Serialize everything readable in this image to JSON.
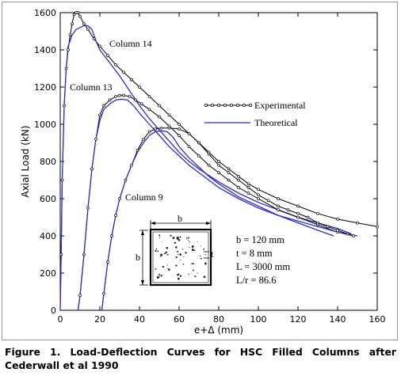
{
  "caption": "Figure 1. Load-Deflection Curves for HSC Filled Columns after Cederwall et al 1990",
  "section": {
    "dim_b_top": "b",
    "dim_b_left": "b",
    "dim_t": "t"
  },
  "properties": [
    "b = 120 mm",
    "t = 8 mm",
    "L = 3000 mm",
    "L/r = 86.6"
  ],
  "colors": {
    "experimental": "#000000",
    "theoretical": "#2b2bd6"
  },
  "chart_data": {
    "type": "line",
    "xlabel": "e+Δ (mm)",
    "ylabel": "Axial Load (kN)",
    "xlim": [
      0,
      160
    ],
    "ylim": [
      0,
      1600
    ],
    "xticks": [
      0,
      20,
      40,
      60,
      80,
      100,
      120,
      140,
      160
    ],
    "yticks": [
      0,
      200,
      400,
      600,
      800,
      1000,
      1200,
      1400,
      1600
    ],
    "legend": {
      "position": "right-middle",
      "entries": [
        "Experimental",
        "Theoretical"
      ]
    },
    "annotations": [
      "Column 14",
      "Column 13",
      "Column 9"
    ],
    "series": [
      {
        "name": "Experimental",
        "column": "Column 14",
        "style": "line-with-markers",
        "points": [
          [
            0,
            0
          ],
          [
            0.5,
            300
          ],
          [
            1,
            700
          ],
          [
            2,
            1100
          ],
          [
            3,
            1300
          ],
          [
            4,
            1400
          ],
          [
            5,
            1480
          ],
          [
            6,
            1540
          ],
          [
            7,
            1590
          ],
          [
            8,
            1600
          ],
          [
            9,
            1600
          ],
          [
            10,
            1580
          ],
          [
            12,
            1540
          ],
          [
            14,
            1510
          ],
          [
            17,
            1460
          ],
          [
            20,
            1420
          ],
          [
            24,
            1370
          ],
          [
            28,
            1320
          ],
          [
            32,
            1280
          ],
          [
            36,
            1240
          ],
          [
            40,
            1200
          ],
          [
            45,
            1150
          ],
          [
            50,
            1100
          ],
          [
            55,
            1050
          ],
          [
            60,
            1000
          ],
          [
            65,
            950
          ],
          [
            70,
            900
          ],
          [
            75,
            850
          ],
          [
            80,
            800
          ],
          [
            85,
            760
          ],
          [
            90,
            720
          ],
          [
            95,
            680
          ],
          [
            100,
            650
          ],
          [
            110,
            600
          ],
          [
            120,
            560
          ],
          [
            130,
            520
          ],
          [
            140,
            490
          ],
          [
            150,
            470
          ],
          [
            160,
            450
          ]
        ]
      },
      {
        "name": "Theoretical",
        "column": "Column 14",
        "style": "line",
        "points": [
          [
            0,
            0
          ],
          [
            1,
            700
          ],
          [
            2,
            1100
          ],
          [
            3,
            1300
          ],
          [
            4,
            1420
          ],
          [
            6,
            1480
          ],
          [
            8,
            1510
          ],
          [
            10,
            1520
          ],
          [
            12,
            1530
          ],
          [
            14,
            1530
          ],
          [
            16,
            1510
          ],
          [
            18,
            1450
          ],
          [
            20,
            1400
          ],
          [
            25,
            1330
          ],
          [
            30,
            1260
          ],
          [
            35,
            1180
          ],
          [
            40,
            1100
          ],
          [
            45,
            1030
          ],
          [
            50,
            970
          ],
          [
            55,
            910
          ],
          [
            60,
            850
          ],
          [
            65,
            800
          ],
          [
            70,
            760
          ],
          [
            80,
            690
          ],
          [
            90,
            630
          ],
          [
            100,
            580
          ],
          [
            110,
            540
          ],
          [
            120,
            500
          ],
          [
            130,
            470
          ],
          [
            140,
            440
          ],
          [
            147,
            410
          ]
        ]
      },
      {
        "name": "Experimental",
        "column": "Column 13",
        "style": "line-with-markers",
        "points": [
          [
            9,
            0
          ],
          [
            10,
            80
          ],
          [
            12,
            300
          ],
          [
            14,
            550
          ],
          [
            16,
            760
          ],
          [
            18,
            920
          ],
          [
            20,
            1050
          ],
          [
            22,
            1100
          ],
          [
            25,
            1130
          ],
          [
            28,
            1150
          ],
          [
            30,
            1155
          ],
          [
            32,
            1155
          ],
          [
            35,
            1150
          ],
          [
            38,
            1130
          ],
          [
            41,
            1110
          ],
          [
            45,
            1080
          ],
          [
            50,
            1040
          ],
          [
            55,
            990
          ],
          [
            60,
            940
          ],
          [
            65,
            880
          ],
          [
            70,
            830
          ],
          [
            75,
            780
          ],
          [
            80,
            740
          ],
          [
            85,
            700
          ],
          [
            90,
            660
          ],
          [
            95,
            630
          ],
          [
            100,
            600
          ],
          [
            110,
            540
          ],
          [
            120,
            500
          ],
          [
            130,
            460
          ],
          [
            140,
            420
          ],
          [
            148,
            400
          ]
        ]
      },
      {
        "name": "Theoretical",
        "column": "Column 13",
        "style": "line",
        "points": [
          [
            9,
            0
          ],
          [
            10,
            80
          ],
          [
            12,
            300
          ],
          [
            14,
            550
          ],
          [
            16,
            760
          ],
          [
            18,
            920
          ],
          [
            20,
            1020
          ],
          [
            22,
            1080
          ],
          [
            25,
            1110
          ],
          [
            28,
            1130
          ],
          [
            31,
            1135
          ],
          [
            34,
            1130
          ],
          [
            37,
            1100
          ],
          [
            40,
            1060
          ],
          [
            45,
            1000
          ],
          [
            50,
            940
          ],
          [
            55,
            880
          ],
          [
            60,
            830
          ],
          [
            65,
            780
          ],
          [
            70,
            740
          ],
          [
            75,
            700
          ],
          [
            80,
            660
          ],
          [
            90,
            600
          ],
          [
            100,
            550
          ],
          [
            110,
            510
          ],
          [
            120,
            480
          ],
          [
            130,
            450
          ],
          [
            140,
            420
          ],
          [
            150,
            400
          ]
        ]
      },
      {
        "name": "Experimental",
        "column": "Column 9",
        "style": "line-with-markers",
        "points": [
          [
            21,
            0
          ],
          [
            22,
            90
          ],
          [
            24,
            260
          ],
          [
            26,
            400
          ],
          [
            28,
            510
          ],
          [
            30,
            600
          ],
          [
            33,
            700
          ],
          [
            36,
            780
          ],
          [
            39,
            860
          ],
          [
            42,
            920
          ],
          [
            45,
            960
          ],
          [
            48,
            975
          ],
          [
            51,
            980
          ],
          [
            55,
            980
          ],
          [
            60,
            975
          ],
          [
            65,
            950
          ],
          [
            70,
            900
          ],
          [
            75,
            840
          ],
          [
            80,
            780
          ],
          [
            85,
            740
          ],
          [
            90,
            700
          ],
          [
            95,
            660
          ],
          [
            100,
            620
          ],
          [
            105,
            590
          ],
          [
            110,
            560
          ],
          [
            115,
            540
          ],
          [
            120,
            520
          ],
          [
            125,
            500
          ],
          [
            130,
            470
          ],
          [
            135,
            450
          ],
          [
            140,
            430
          ],
          [
            145,
            410
          ]
        ]
      },
      {
        "name": "Theoretical",
        "column": "Column 9",
        "style": "line",
        "points": [
          [
            21,
            0
          ],
          [
            22,
            90
          ],
          [
            24,
            260
          ],
          [
            26,
            400
          ],
          [
            28,
            510
          ],
          [
            30,
            600
          ],
          [
            33,
            700
          ],
          [
            36,
            780
          ],
          [
            39,
            850
          ],
          [
            42,
            900
          ],
          [
            45,
            940
          ],
          [
            48,
            960
          ],
          [
            51,
            965
          ],
          [
            54,
            960
          ],
          [
            57,
            930
          ],
          [
            60,
            880
          ],
          [
            65,
            820
          ],
          [
            70,
            770
          ],
          [
            75,
            720
          ],
          [
            80,
            680
          ],
          [
            90,
            610
          ],
          [
            100,
            560
          ],
          [
            110,
            510
          ],
          [
            120,
            470
          ],
          [
            130,
            430
          ],
          [
            138,
            400
          ]
        ]
      }
    ]
  }
}
